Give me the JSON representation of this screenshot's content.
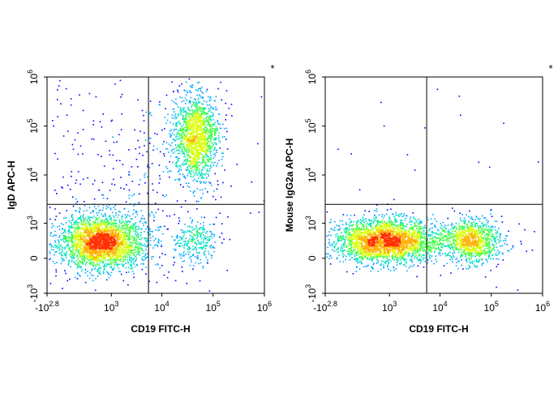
{
  "colors": {
    "density_scale": [
      "#0000ff",
      "#00a8ff",
      "#00e0c0",
      "#40ff40",
      "#d8ff00",
      "#ffb000",
      "#ff3000"
    ],
    "frame": "#000000",
    "gate_line": "#000000"
  },
  "chart_data": [
    {
      "type": "scatter",
      "subtype": "flow-cytometry-density-dot-plot",
      "marker": "*",
      "xlabel": "CD19 FITC-H",
      "ylabel": "IgD APC-H",
      "x_scale": "biexponential",
      "y_scale": "biexponential",
      "xlim": [
        -631,
        1000000
      ],
      "ylim": [
        -1000,
        1000000
      ],
      "x_ticks": [
        {
          "base": "-10",
          "exp": "2.8",
          "value": -631
        },
        {
          "base": "10",
          "exp": "3",
          "value": 1000
        },
        {
          "base": "10",
          "exp": "4",
          "value": 10000
        },
        {
          "base": "10",
          "exp": "5",
          "value": 100000
        },
        {
          "base": "10",
          "exp": "6",
          "value": 1000000
        }
      ],
      "y_ticks": [
        {
          "base": "-10",
          "exp": "3",
          "value": -1000
        },
        {
          "base": "0",
          "exp": "",
          "value": 0
        },
        {
          "base": "10",
          "exp": "3",
          "value": 1000
        },
        {
          "base": "10",
          "exp": "4",
          "value": 10000
        },
        {
          "base": "10",
          "exp": "5",
          "value": 100000
        },
        {
          "base": "10",
          "exp": "6",
          "value": 1000000
        }
      ],
      "gate_x": 5500,
      "gate_y": 2500,
      "populations": [
        {
          "center": [
            600,
            350
          ],
          "spread": [
            0.1,
            0.06
          ],
          "count": 2600
        },
        {
          "center": [
            45000,
            60000
          ],
          "spread": [
            0.05,
            0.1
          ],
          "count": 1400
        },
        {
          "center": [
            45000,
            350
          ],
          "spread": [
            0.05,
            0.05
          ],
          "count": 260
        },
        {
          "center": [
            3000,
            6000
          ],
          "spread": [
            0.25,
            0.3
          ],
          "count": 500
        }
      ]
    },
    {
      "type": "scatter",
      "subtype": "flow-cytometry-density-dot-plot",
      "marker": "*",
      "xlabel": "CD19 FITC-H",
      "ylabel": "Mouse IgG2a APC-H",
      "x_scale": "biexponential",
      "y_scale": "biexponential",
      "xlim": [
        -631,
        1000000
      ],
      "ylim": [
        -1000,
        1000000
      ],
      "x_ticks": [
        {
          "base": "-10",
          "exp": "2.8",
          "value": -631
        },
        {
          "base": "10",
          "exp": "3",
          "value": 1000
        },
        {
          "base": "10",
          "exp": "4",
          "value": 10000
        },
        {
          "base": "10",
          "exp": "5",
          "value": 100000
        },
        {
          "base": "10",
          "exp": "6",
          "value": 1000000
        }
      ],
      "y_ticks": [
        {
          "base": "-10",
          "exp": "3",
          "value": -1000
        },
        {
          "base": "0",
          "exp": "",
          "value": 0
        },
        {
          "base": "10",
          "exp": "3",
          "value": 1000
        },
        {
          "base": "10",
          "exp": "4",
          "value": 10000
        },
        {
          "base": "10",
          "exp": "5",
          "value": 100000
        },
        {
          "base": "10",
          "exp": "6",
          "value": 1000000
        }
      ],
      "gate_x": 5500,
      "gate_y": 2500,
      "populations": [
        {
          "center": [
            800,
            380
          ],
          "spread": [
            0.12,
            0.05
          ],
          "count": 2600
        },
        {
          "center": [
            40000,
            380
          ],
          "spread": [
            0.06,
            0.05
          ],
          "count": 900
        },
        {
          "center": [
            10000,
            380
          ],
          "spread": [
            0.2,
            0.04
          ],
          "count": 250
        },
        {
          "center": [
            5000,
            6000
          ],
          "spread": [
            0.3,
            0.35
          ],
          "count": 40
        }
      ]
    }
  ]
}
